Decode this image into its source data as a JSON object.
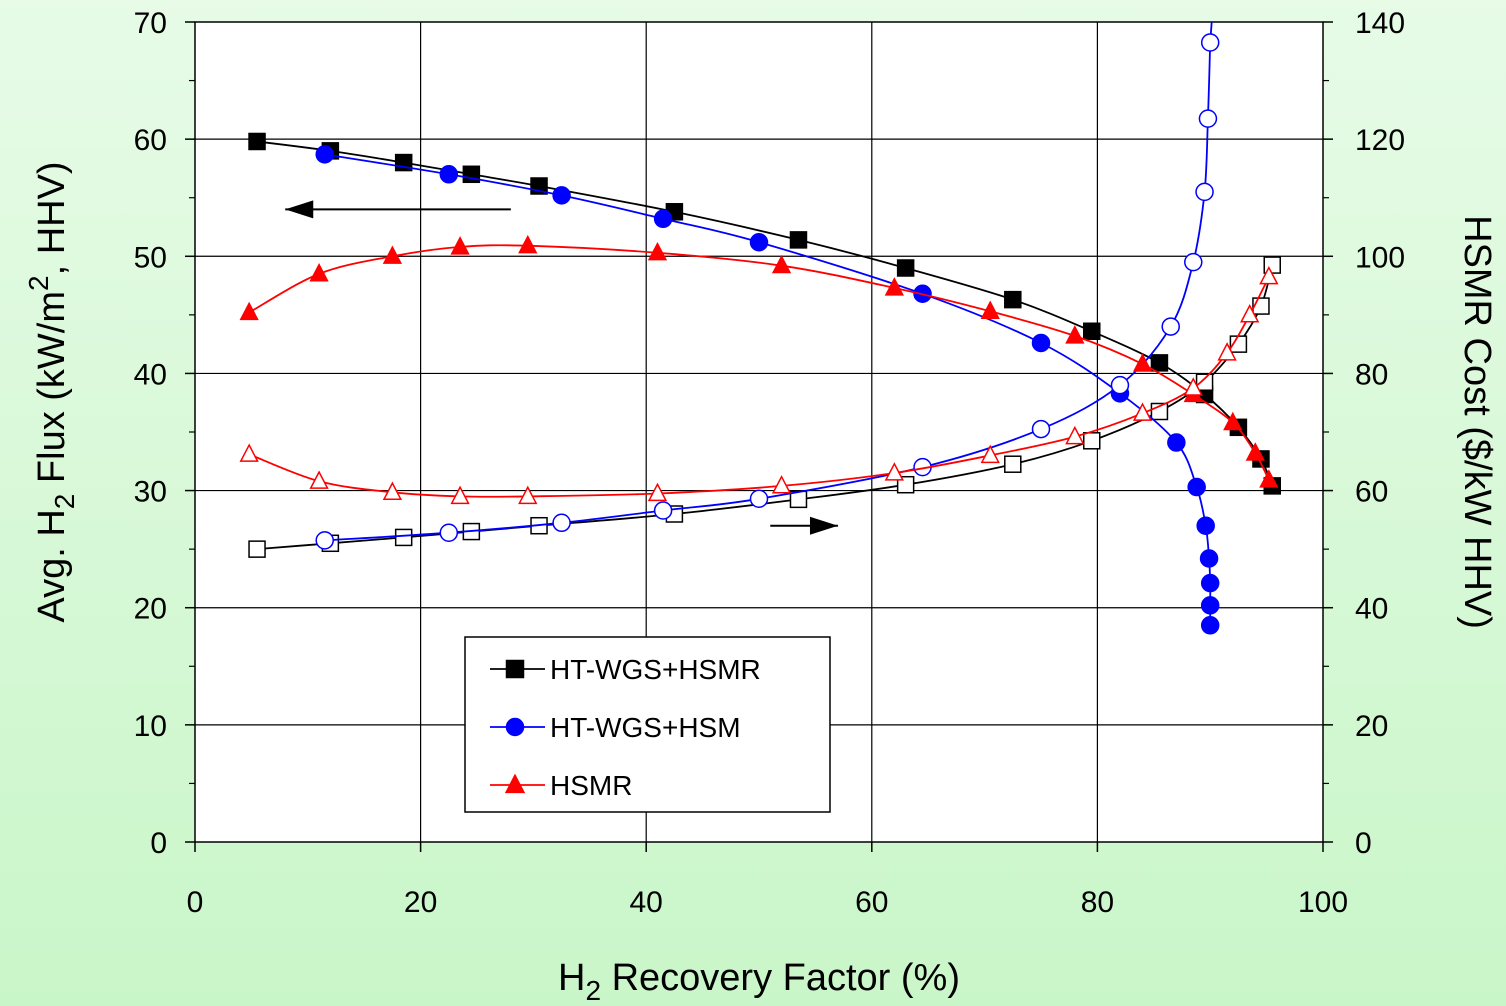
{
  "chart_data": {
    "type": "line",
    "title": "",
    "xlabel": {
      "pre": "H",
      "sub": "2",
      "post": " Recovery Factor (%)"
    },
    "ylabel_left": {
      "pre": "Avg. H",
      "sub": "2",
      "mid": " Flux (kW/m",
      "sup": "2",
      "post": ", HHV)"
    },
    "ylabel_right": "HSMR Cost ($/kW HHV)",
    "xlim": [
      0,
      100
    ],
    "ylim_left": [
      0,
      70
    ],
    "ylim_right": [
      0,
      140
    ],
    "x_ticks": [
      "0",
      "20",
      "40",
      "60",
      "80",
      "100"
    ],
    "y_ticks_left": [
      "0",
      "10",
      "20",
      "30",
      "40",
      "50",
      "60",
      "70"
    ],
    "y_ticks_right": [
      "0",
      "20",
      "40",
      "60",
      "80",
      "100",
      "120",
      "140"
    ],
    "grid": true,
    "legend_position": "lower-left",
    "arrows": [
      {
        "label": "flux-axis-arrow",
        "direction": "left",
        "x_from": 28,
        "x_to": 8,
        "y": 54
      },
      {
        "label": "cost-axis-arrow",
        "direction": "right",
        "x_from": 51,
        "x_to": 57,
        "y": 27
      }
    ],
    "series": [
      {
        "name": "HT-WGS+HSMR",
        "color": "#000000",
        "marker": "square",
        "fill": "filled",
        "axis": "left",
        "x": [
          5.5,
          12,
          18.5,
          24.5,
          30.5,
          42.5,
          53.5,
          63,
          72.5,
          79.5,
          85.5,
          89.5,
          92.5,
          94.5,
          95.5
        ],
        "y": [
          59.8,
          59,
          58,
          57,
          56,
          53.8,
          51.4,
          49,
          46.3,
          43.6,
          40.9,
          38.2,
          35.4,
          32.7,
          30.4
        ]
      },
      {
        "name": "HT-WGS+HSMR",
        "color": "#000000",
        "marker": "square",
        "fill": "open",
        "axis": "right",
        "x": [
          5.5,
          12,
          18.5,
          24.5,
          30.5,
          42.5,
          53.5,
          63,
          72.5,
          79.5,
          85.5,
          89.5,
          92.5,
          94.5,
          95.5
        ],
        "y": [
          50,
          51,
          52,
          53,
          54,
          56,
          58.5,
          61,
          64.5,
          68.5,
          73.5,
          78.5,
          85,
          91.5,
          98.5
        ]
      },
      {
        "name": "HT-WGS+HSM",
        "color": "#0000FF",
        "marker": "circle",
        "fill": "filled",
        "axis": "left",
        "x": [
          11.5,
          22.5,
          32.5,
          41.5,
          50,
          64.5,
          75,
          82,
          87,
          88.8,
          89.6,
          89.9,
          90.0,
          90.0,
          90.0
        ],
        "y": [
          58.7,
          57,
          55.2,
          53.2,
          51.2,
          46.8,
          42.6,
          38.3,
          34.1,
          30.3,
          27,
          24.2,
          22.1,
          20.2,
          18.5
        ]
      },
      {
        "name": "HT-WGS+HSM",
        "color": "#0000FF",
        "marker": "circle",
        "fill": "open",
        "axis": "right",
        "x": [
          11.5,
          22.5,
          32.5,
          41.5,
          50,
          64.5,
          75,
          82,
          86.5,
          88.5,
          89.5,
          89.8,
          90.0
        ],
        "y": [
          51.5,
          52.8,
          54.5,
          56.6,
          58.6,
          64,
          70.5,
          78,
          88,
          99,
          111,
          123.5,
          136.5
        ]
      },
      {
        "name": "HSMR",
        "color": "#FF0000",
        "marker": "triangle",
        "fill": "filled",
        "axis": "left",
        "x": [
          4.8,
          11,
          17.5,
          23.5,
          29.5,
          41,
          52,
          62,
          70.5,
          78,
          84,
          88.5,
          92,
          94,
          95.2
        ],
        "y": [
          45.2,
          48.5,
          50,
          50.8,
          50.9,
          50.3,
          49.2,
          47.3,
          45.3,
          43.2,
          40.8,
          38.2,
          35.8,
          33.2,
          30.9
        ]
      },
      {
        "name": "HSMR",
        "color": "#FF0000",
        "marker": "triangle",
        "fill": "open",
        "axis": "right",
        "x": [
          4.8,
          11,
          17.5,
          23.5,
          29.5,
          41,
          52,
          62,
          70.5,
          78,
          84,
          88.5,
          91.5,
          93.5,
          95.2
        ],
        "y": [
          66.2,
          61.6,
          59.7,
          59,
          59,
          59.5,
          60.8,
          63,
          66,
          69.2,
          73.2,
          77.5,
          83.5,
          90,
          96.5
        ]
      }
    ],
    "legend": [
      {
        "label": "HT-WGS+HSMR",
        "color": "#000000",
        "marker": "square"
      },
      {
        "label": "HT-WGS+HSM",
        "color": "#0000FF",
        "marker": "circle"
      },
      {
        "label": "HSMR",
        "color": "#FF0000",
        "marker": "triangle"
      }
    ]
  }
}
